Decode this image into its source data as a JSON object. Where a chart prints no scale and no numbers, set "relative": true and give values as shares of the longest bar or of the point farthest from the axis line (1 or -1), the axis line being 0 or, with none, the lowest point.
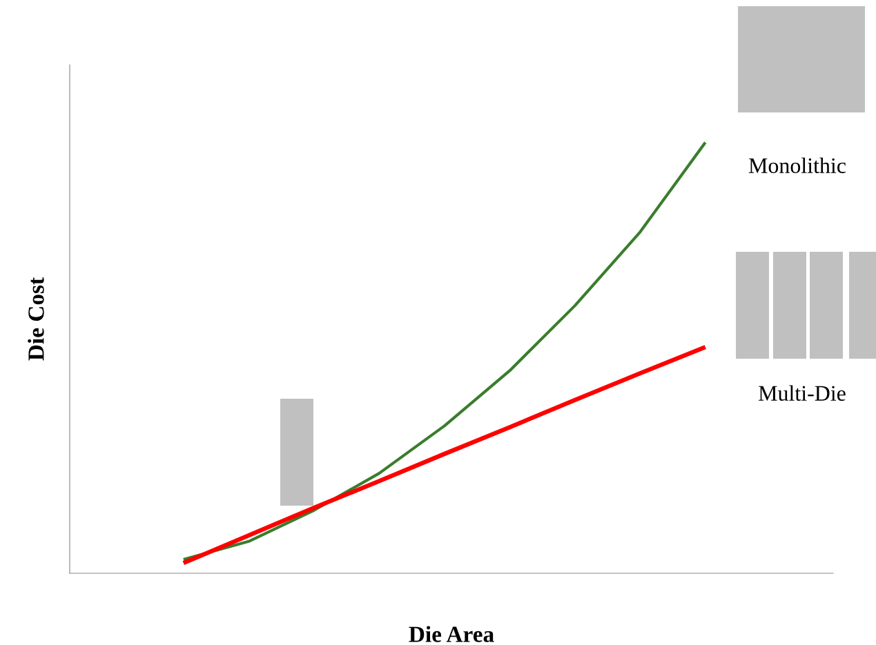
{
  "chart_data": {
    "type": "line",
    "relative": true,
    "xlabel": "Die Area",
    "ylabel": "Die Cost",
    "tick_labels": false,
    "legend": false,
    "marker": "none",
    "line_style": "solid",
    "categories": [
      null,
      null,
      null,
      null,
      null,
      null,
      null,
      null,
      null
    ],
    "series": [
      {
        "name": "Monolithic",
        "color": "#3a7d2c",
        "values": [
          0.032,
          0.074,
          0.146,
          0.232,
          0.342,
          0.47,
          0.621,
          0.792,
          1.0
        ]
      },
      {
        "name": "Multi-Die",
        "color": "#ff0000",
        "values": [
          0.024,
          0.088,
          0.152,
          0.214,
          0.277,
          0.339,
          0.402,
          0.464,
          0.525
        ]
      }
    ]
  }
}
